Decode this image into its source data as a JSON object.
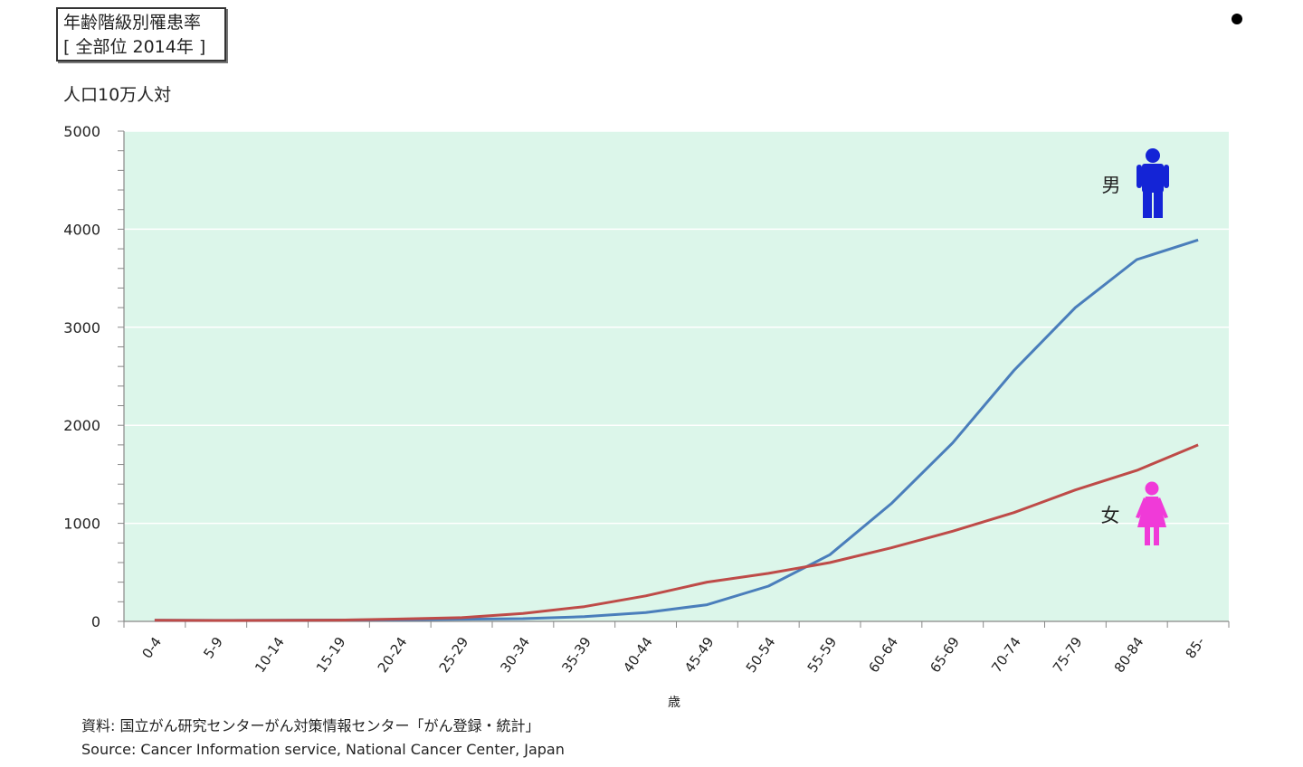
{
  "title_lines": [
    "年齢階級別罹患率",
    "[ 全部位 2014年 ]"
  ],
  "y_unit": "人口10万人対",
  "footer": {
    "source_jp": "資料:   国立がん研究センターがん対策情報センター「がん登録・統計」",
    "source_en": "Source: Cancer Information service, National Cancer Center, Japan"
  },
  "chart_data": {
    "type": "line",
    "categories": [
      "0-4",
      "5-9",
      "10-14",
      "15-19",
      "20-24",
      "25-29",
      "30-34",
      "35-39",
      "40-44",
      "45-49",
      "50-54",
      "55-59",
      "60-64",
      "65-69",
      "70-74",
      "75-79",
      "80-84",
      "85-"
    ],
    "xlabel": "歳",
    "ylabel": "人口10万人対",
    "ylim": [
      0,
      5000
    ],
    "yticks": [
      0,
      1000,
      2000,
      3000,
      4000,
      5000
    ],
    "grid": true,
    "plot_background": "#dcf6ea",
    "series": [
      {
        "name": "男",
        "color": "#4a7ebb",
        "values": [
          12,
          10,
          11,
          14,
          16,
          22,
          28,
          48,
          90,
          170,
          360,
          680,
          1200,
          1820,
          2560,
          3200,
          3690,
          3890
        ]
      },
      {
        "name": "女",
        "color": "#be4b48",
        "values": [
          11,
          9,
          10,
          13,
          24,
          38,
          80,
          150,
          260,
          400,
          490,
          600,
          750,
          920,
          1110,
          1340,
          1540,
          1800
        ]
      }
    ],
    "legend": [
      {
        "label": "男",
        "icon": "man-icon",
        "color": "#1424d6"
      },
      {
        "label": "女",
        "icon": "woman-icon",
        "color": "#f03ad8"
      }
    ]
  }
}
